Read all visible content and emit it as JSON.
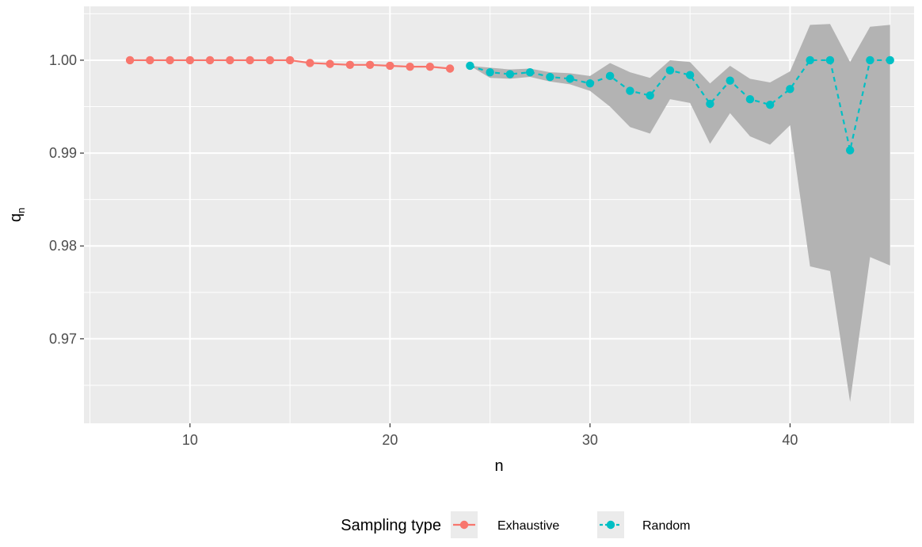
{
  "chart_data": {
    "type": "line",
    "xlabel": "n",
    "ylabel_main": "q",
    "ylabel_sub": "n",
    "xlim": [
      4.7,
      46.2
    ],
    "ylim": [
      0.9609,
      1.0058
    ],
    "x_ticks": [
      10,
      20,
      30,
      40
    ],
    "x_tick_labels": [
      "10",
      "20",
      "30",
      "40"
    ],
    "y_ticks": [
      0.97,
      0.98,
      0.99,
      1.0
    ],
    "y_tick_labels": [
      "0.97",
      "0.98",
      "0.99",
      "1.00"
    ],
    "grid": true,
    "legend_position": "bottom",
    "legend_title": "Sampling type",
    "series": [
      {
        "name": "Exhaustive",
        "color": "#F8766D",
        "linetype": "solid",
        "x": [
          7,
          8,
          9,
          10,
          11,
          12,
          13,
          14,
          15,
          16,
          17,
          18,
          19,
          20,
          21,
          22,
          23
        ],
        "y": [
          1.0,
          1.0,
          1.0,
          1.0,
          1.0,
          1.0,
          1.0,
          1.0,
          1.0,
          0.9997,
          0.9996,
          0.9995,
          0.9995,
          0.9994,
          0.9993,
          0.9993,
          0.9991
        ]
      },
      {
        "name": "Random",
        "color": "#00BFC4",
        "linetype": "dashed",
        "x": [
          24,
          25,
          26,
          27,
          28,
          29,
          30,
          31,
          32,
          33,
          34,
          35,
          36,
          37,
          38,
          39,
          40,
          41,
          42,
          43,
          44,
          45
        ],
        "y": [
          0.9994,
          0.9987,
          0.9985,
          0.9987,
          0.9982,
          0.998,
          0.9975,
          0.9983,
          0.9967,
          0.9962,
          0.9989,
          0.9984,
          0.9953,
          0.9978,
          0.9958,
          0.9952,
          0.9969,
          1.0,
          1.0,
          0.9903,
          1.0,
          1.0
        ],
        "ribbon_lower": [
          0.9994,
          0.9981,
          0.998,
          0.9982,
          0.9977,
          0.9974,
          0.9967,
          0.995,
          0.9928,
          0.9921,
          0.9958,
          0.9954,
          0.991,
          0.9943,
          0.9918,
          0.9909,
          0.993,
          0.9778,
          0.9773,
          0.9632,
          0.9788,
          0.9779
        ],
        "ribbon_upper": [
          0.9994,
          0.9992,
          0.999,
          0.9991,
          0.9987,
          0.9986,
          0.9983,
          0.9997,
          0.9987,
          0.9981,
          1.0,
          0.9998,
          0.9975,
          0.9994,
          0.998,
          0.9976,
          0.9988,
          1.0038,
          1.0039,
          0.9998,
          1.0036,
          1.0038
        ],
        "ribbon_color": "#b3b3b3"
      }
    ]
  }
}
